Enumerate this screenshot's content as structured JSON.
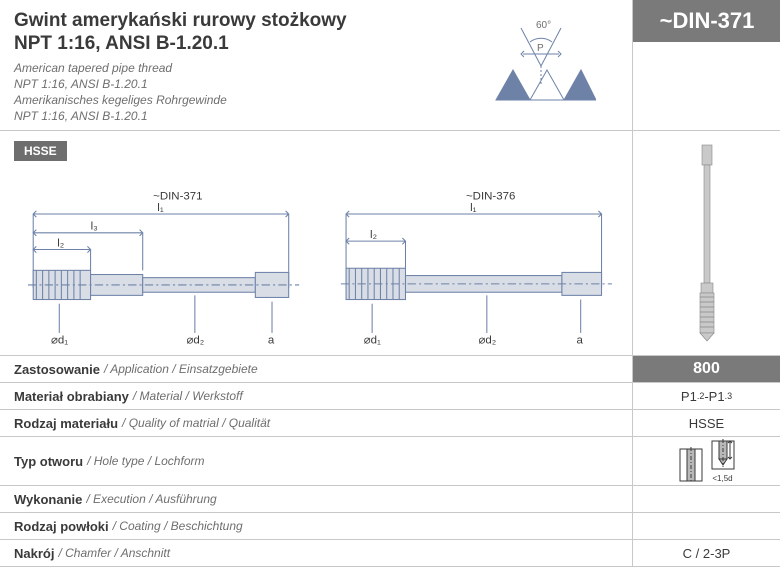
{
  "header": {
    "title_line1": "Gwint amerykański rurowy stożkowy",
    "title_line2": "NPT 1:16, ANSI B-1.20.1",
    "sub_en_1": "American tapered pipe thread",
    "sub_en_2": "NPT 1:16, ANSI B-1.20.1",
    "sub_de_1": "Amerikanisches kegeliges Rohrgewinde",
    "sub_de_2": "NPT 1:16, ANSI B-1.20.1",
    "din_label": "~DIN-371",
    "angle": {
      "degrees": "60°",
      "p_label": "P",
      "line_color": "#6e82a8",
      "fill_color": "#6e82a8"
    }
  },
  "mid": {
    "hsse_badge": "HSSE",
    "drawing_left_label": "~DIN-371",
    "drawing_right_label": "~DIN-376",
    "dim_l1": "l₁",
    "dim_l2": "l₂",
    "dim_l3": "l₃",
    "dim_d1": "⌀d₁",
    "dim_d2": "⌀d₂",
    "dim_a": "a",
    "drawing_color": "#6e82a8",
    "fill_color": "#d8dde6"
  },
  "specs": [
    {
      "pl": "Zastosowanie",
      "alt": "/ Application / Einsatzgebiete",
      "value": "800",
      "value_style": "dark"
    },
    {
      "pl": "Materiał obrabiany",
      "alt": "/ Material / Werkstoff",
      "value": "P1.2-P1.3",
      "value_style": "plain"
    },
    {
      "pl": "Rodzaj materiału",
      "alt": "/ Quality of matrial / Qualität",
      "value": "HSSE",
      "value_style": "plain"
    },
    {
      "pl": "Typ otworu",
      "alt": "/ Hole type / Lochform",
      "value": "__hole_icons__",
      "value_style": "icons",
      "hole_depth_label": "<1,5d"
    },
    {
      "pl": "Wykonanie",
      "alt": "/ Execution / Ausführung",
      "value": "",
      "value_style": "plain"
    },
    {
      "pl": "Rodzaj powłoki",
      "alt": "/ Coating / Beschichtung",
      "value": "",
      "value_style": "plain"
    },
    {
      "pl": "Nakrój",
      "alt": "/ Chamfer / Anschnitt",
      "value": "C / 2-3P",
      "value_style": "plain"
    }
  ],
  "colors": {
    "border": "#c8c8c8",
    "dark_bg": "#7a7a7a",
    "text": "#3a3a3a",
    "muted": "#6e6e6e"
  }
}
